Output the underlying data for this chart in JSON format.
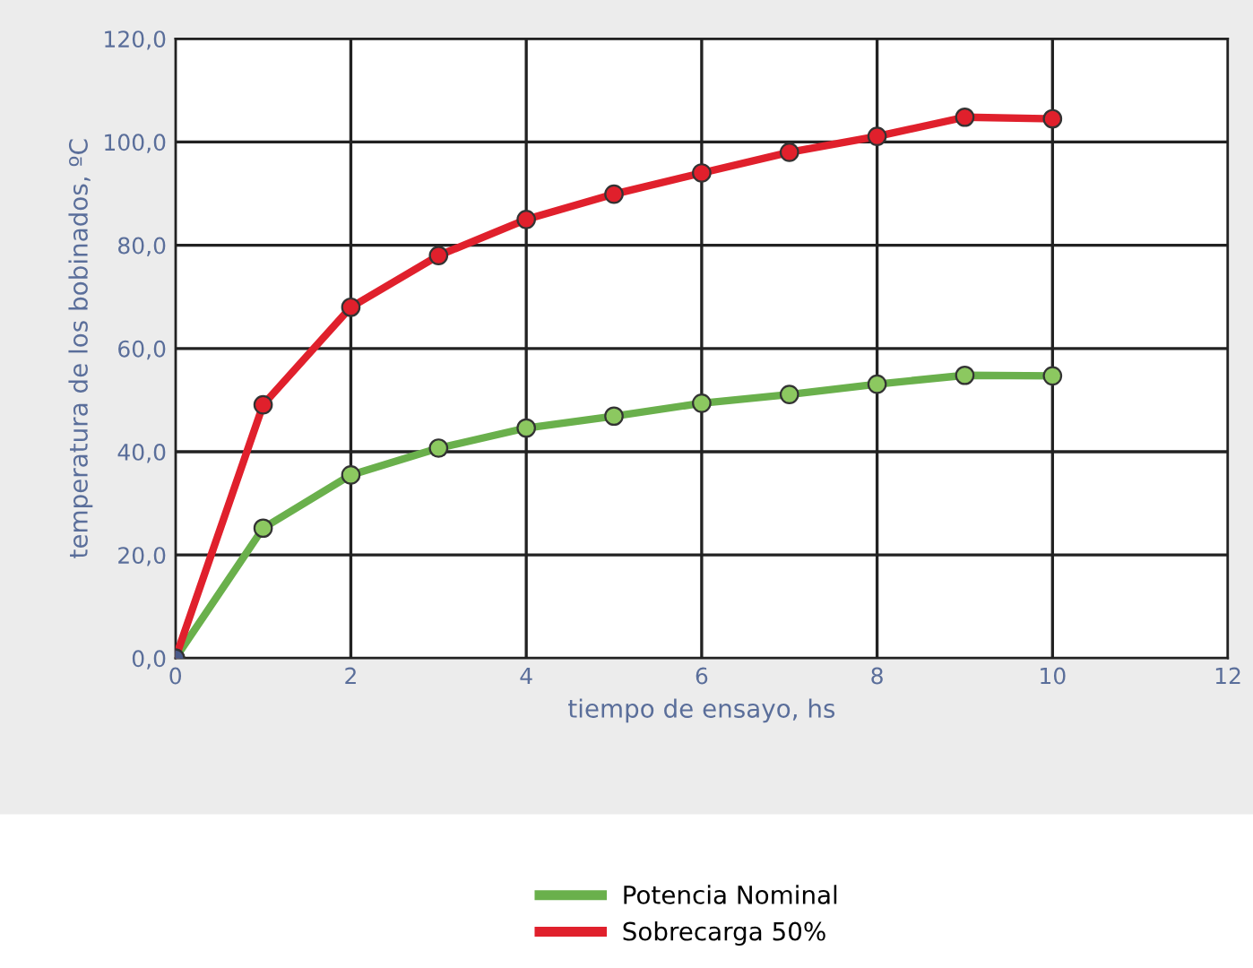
{
  "chart_data": {
    "type": "line",
    "xlabel": "tiempo de ensayo, hs",
    "ylabel": "temperatura de los bobinados, ºC",
    "x": [
      0,
      1,
      2,
      3,
      4,
      5,
      6,
      7,
      8,
      9,
      10
    ],
    "series": [
      {
        "name": "Potencia Nominal",
        "color": "#6ab04c",
        "colors": [
          "#4a5a8a",
          "#8cc860",
          "#8cc860",
          "#8cc860",
          "#8cc860",
          "#8cc860",
          "#8cc860",
          "#8cc860",
          "#8cc860",
          "#8cc860",
          "#8cc860"
        ],
        "values": [
          0,
          25.2,
          35.5,
          40.7,
          44.6,
          46.9,
          49.4,
          51.1,
          53.1,
          54.8,
          54.7
        ]
      },
      {
        "name": "Sobrecarga 50%",
        "color": "#e0202c",
        "colors": [
          "#4a5a8a",
          "#e0202c",
          "#e0202c",
          "#e0202c",
          "#e0202c",
          "#e0202c",
          "#e0202c",
          "#e0202c",
          "#e0202c",
          "#e0202c",
          "#e0202c"
        ],
        "values": [
          0,
          49.1,
          68.0,
          78.0,
          85.0,
          89.9,
          94.0,
          98.0,
          101.1,
          104.8,
          104.5
        ]
      }
    ],
    "xlim": [
      0,
      12
    ],
    "xticks": [
      0,
      2,
      4,
      6,
      8,
      10,
      12
    ],
    "ylim": [
      0,
      120
    ],
    "yticks": [
      {
        "value": 0,
        "label": "0,0"
      },
      {
        "value": 20,
        "label": "20,0"
      },
      {
        "value": 40,
        "label": "40,0"
      },
      {
        "value": 60,
        "label": "60,0"
      },
      {
        "value": 80,
        "label": "80,0"
      },
      {
        "value": 100,
        "label": "100,0"
      },
      {
        "value": 120,
        "label": "120,0"
      }
    ],
    "grid": true,
    "legend": "bottom",
    "marker": "circle",
    "line_style": "solid"
  }
}
